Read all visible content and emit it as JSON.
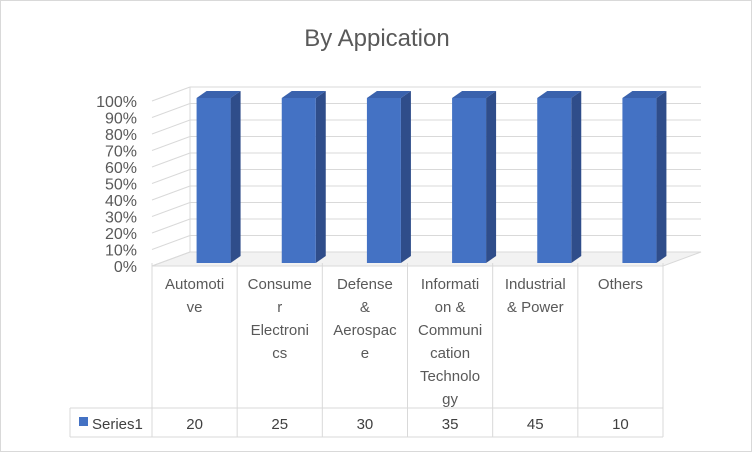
{
  "chart_data": {
    "type": "bar",
    "title": "By Appication",
    "categories": [
      [
        "Automoti",
        "ve"
      ],
      [
        "Consume",
        "r",
        "Electroni",
        "cs"
      ],
      [
        "Defense",
        "&",
        "Aerospac",
        "e"
      ],
      [
        "Informati",
        "on &",
        "Communi",
        "cation",
        "Technolo",
        "gy"
      ],
      [
        "Industrial",
        "& Power"
      ],
      [
        "Others"
      ]
    ],
    "series": [
      {
        "name": "Series1",
        "values": [
          20,
          25,
          30,
          35,
          45,
          10
        ],
        "color": "#4472c4"
      }
    ],
    "y_ticks": [
      "0%",
      "10%",
      "20%",
      "30%",
      "40%",
      "50%",
      "60%",
      "70%",
      "80%",
      "90%",
      "100%"
    ],
    "ylim": [
      0,
      100
    ],
    "stacking": "percent",
    "grid": true,
    "legend": "data-table"
  }
}
